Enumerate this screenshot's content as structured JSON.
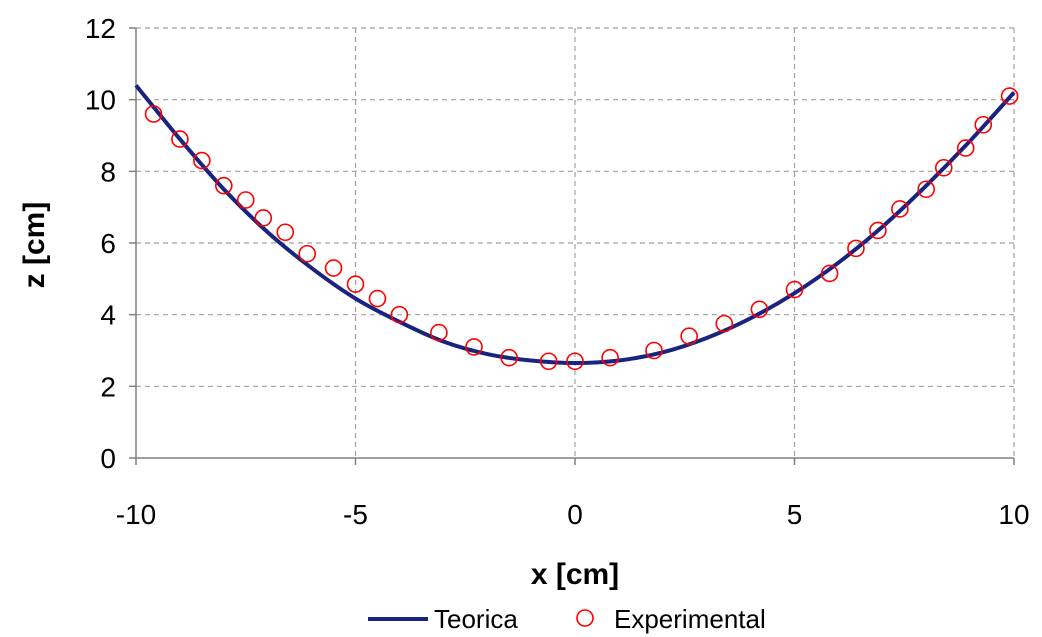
{
  "chart_data": {
    "type": "scatter",
    "xlabel": "x [cm]",
    "ylabel": "z [cm]",
    "xlim": [
      -10,
      10
    ],
    "ylim": [
      0,
      12
    ],
    "xticks": [
      -10,
      -5,
      0,
      5,
      10
    ],
    "yticks": [
      0,
      2,
      4,
      6,
      8,
      10,
      12
    ],
    "grid": true,
    "legend_position": "bottom",
    "series": [
      {
        "name": "Teorica",
        "kind": "line",
        "color": "#1a237e",
        "x": [
          -10,
          -9,
          -8,
          -7,
          -6,
          -5,
          -4,
          -3,
          -2,
          -1,
          0,
          1,
          2,
          3,
          4,
          5,
          6,
          7,
          8,
          9,
          10
        ],
        "y": [
          10.4,
          8.9,
          7.5,
          6.3,
          5.3,
          4.45,
          3.8,
          3.25,
          2.9,
          2.72,
          2.65,
          2.72,
          2.95,
          3.35,
          3.9,
          4.6,
          5.45,
          6.45,
          7.6,
          8.85,
          10.2
        ]
      },
      {
        "name": "Experimental",
        "kind": "markers",
        "color": "#ff0000",
        "x": [
          -9.6,
          -9.0,
          -8.5,
          -8.0,
          -7.5,
          -7.1,
          -6.6,
          -6.1,
          -5.5,
          -5.0,
          -4.5,
          -4.0,
          -3.1,
          -2.3,
          -1.5,
          -0.6,
          0.0,
          0.8,
          1.8,
          2.6,
          3.4,
          4.2,
          5.0,
          5.8,
          6.4,
          6.9,
          7.4,
          8.0,
          8.4,
          8.9,
          9.3,
          9.9
        ],
        "y": [
          9.6,
          8.9,
          8.3,
          7.6,
          7.2,
          6.7,
          6.3,
          5.7,
          5.3,
          4.85,
          4.45,
          4.0,
          3.5,
          3.1,
          2.8,
          2.7,
          2.7,
          2.8,
          3.0,
          3.4,
          3.75,
          4.15,
          4.7,
          5.15,
          5.85,
          6.35,
          6.95,
          7.5,
          8.1,
          8.65,
          9.3,
          10.1
        ]
      }
    ]
  }
}
